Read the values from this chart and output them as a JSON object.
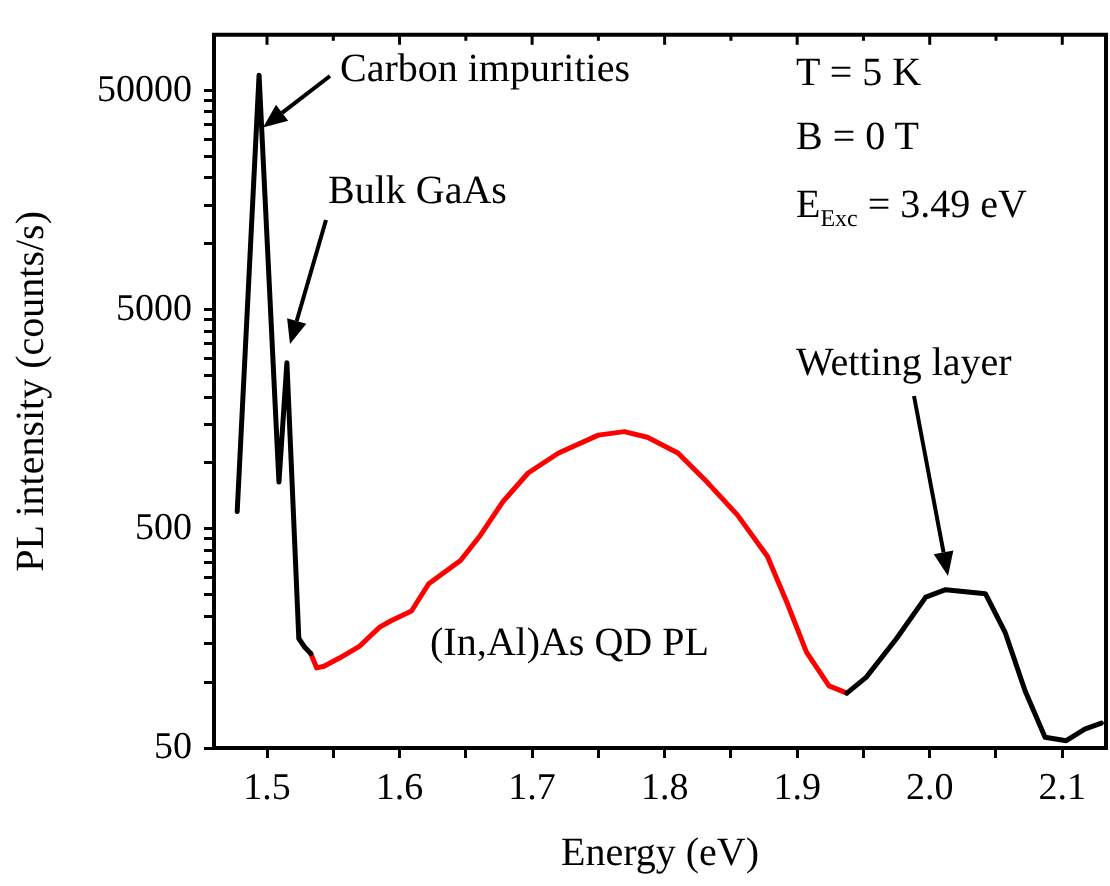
{
  "chart_data": {
    "type": "line",
    "xlabel": "Energy (eV)",
    "ylabel": "PL intensity (counts/s)",
    "xlim": [
      1.46,
      2.133
    ],
    "ylim": [
      50,
      90000
    ],
    "log": "y",
    "grid": false,
    "legend": false,
    "marker": "none",
    "line_style": "solid",
    "xticks": [
      1.5,
      {
        "value": 1.55,
        "label": null
      },
      1.6,
      {
        "value": 1.65,
        "label": null
      },
      1.7,
      {
        "value": 1.75,
        "label": null
      },
      1.8,
      {
        "value": 1.85,
        "label": null
      },
      1.9,
      {
        "value": 1.95,
        "label": null
      },
      "2.0",
      {
        "value": 2.05,
        "label": null
      },
      2.1
    ],
    "yticks": [
      50,
      {
        "value": 100,
        "label": null
      },
      {
        "value": 150,
        "label": null
      },
      {
        "value": 200,
        "label": null
      },
      {
        "value": 250,
        "label": null
      },
      {
        "value": 300,
        "label": null
      },
      {
        "value": 350,
        "label": null
      },
      {
        "value": 400,
        "label": null
      },
      {
        "value": 450,
        "label": null
      },
      500,
      {
        "value": 1000,
        "label": null
      },
      {
        "value": 1500,
        "label": null
      },
      {
        "value": 2000,
        "label": null
      },
      {
        "value": 2500,
        "label": null
      },
      {
        "value": 3000,
        "label": null
      },
      {
        "value": 3500,
        "label": null
      },
      {
        "value": 4000,
        "label": null
      },
      {
        "value": 4500,
        "label": null
      },
      5000,
      {
        "value": 10000,
        "label": null
      },
      {
        "value": 15000,
        "label": null
      },
      {
        "value": 20000,
        "label": null
      },
      {
        "value": 25000,
        "label": null
      },
      {
        "value": 30000,
        "label": null
      },
      {
        "value": 35000,
        "label": null
      },
      {
        "value": 40000,
        "label": null
      },
      {
        "value": 45000,
        "label": null
      },
      50000
    ],
    "series": [
      {
        "color": "#000000",
        "x": [
          1.4775,
          1.494,
          1.509,
          1.515,
          1.524,
          1.5285,
          1.533,
          1.7,
          1.9375,
          1.952,
          1.975,
          1.997,
          2.012,
          2.042,
          2.057,
          2.072,
          2.087,
          2.103,
          2.117,
          2.1295
        ],
        "values": [
          600,
          58900,
          818,
          2870,
          158,
          144,
          135,
          null,
          89,
          105,
          158,
          244,
          264,
          253,
          168,
          91,
          56,
          54,
          61,
          65
        ]
      },
      {
        "color": "#ff0000",
        "x": [
          1.533,
          1.5375,
          1.543,
          1.555,
          1.57,
          1.585,
          1.594,
          1.609,
          1.622,
          1.646,
          1.66,
          1.678,
          1.697,
          1.72,
          1.75,
          1.7695,
          1.787,
          1.81,
          1.832,
          1.855,
          1.8775,
          1.8925,
          1.907,
          1.924,
          1.9375
        ],
        "values": [
          135,
          116,
          118,
          129,
          146,
          178,
          191,
          211,
          281,
          359,
          459,
          666,
          900,
          1110,
          1340,
          1390,
          1310,
          1110,
          818,
          578,
          375,
          229,
          137,
          96,
          89
        ]
      }
    ],
    "annotations": [
      {
        "text": "Carbon impurities",
        "x": 1.497,
        "y": 34000
      },
      "Bulk GaAs",
      "(In,Al)As QD PL",
      "Wetting layer",
      "T = 5 K",
      "B = 0 T",
      "E$_{Exc}$ = 3.49 eV"
    ]
  }
}
